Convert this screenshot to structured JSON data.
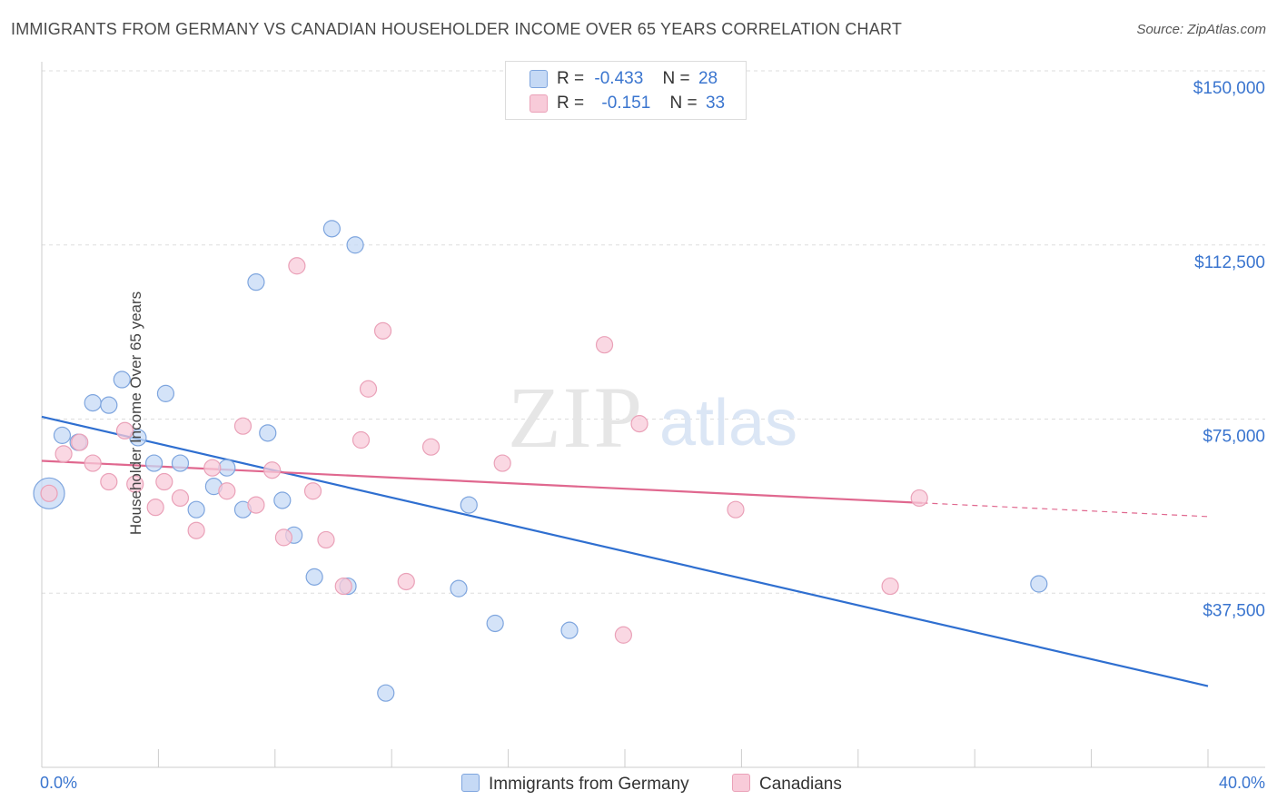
{
  "title": "IMMIGRANTS FROM GERMANY VS CANADIAN HOUSEHOLDER INCOME OVER 65 YEARS CORRELATION CHART",
  "source": "Source: ZipAtlas.com",
  "watermark": {
    "zip": "ZIP",
    "atlas": "atlas"
  },
  "legend": {
    "series1": {
      "r_label": "R =",
      "r_value": "-0.433",
      "n_label": "N =",
      "n_value": "28"
    },
    "series2": {
      "r_label": "R =",
      "r_value": "-0.151",
      "n_label": "N =",
      "n_value": "33"
    }
  },
  "colors": {
    "blue_fill": "#c5d9f5",
    "blue_stroke": "#7ea5de",
    "blue_line": "#2f6fd0",
    "pink_fill": "#f8cbd9",
    "pink_stroke": "#eaa1b8",
    "pink_line": "#e0688f",
    "grid": "#dddddd",
    "axis_text": "#3a75cf"
  },
  "chart_data": {
    "type": "scatter",
    "title": "IMMIGRANTS FROM GERMANY VS CANADIAN HOUSEHOLDER INCOME OVER 65 YEARS CORRELATION CHART",
    "xlabel": "",
    "ylabel": "Householder Income Over 65 years",
    "xlim": [
      0,
      40
    ],
    "ylim": [
      0,
      155000
    ],
    "x_tick_labels": [
      "0.0%",
      "40.0%"
    ],
    "y_ticks": [
      37500,
      75000,
      112500,
      150000
    ],
    "y_tick_labels": [
      "$37,500",
      "$75,000",
      "$112,500",
      "$150,000"
    ],
    "series": [
      {
        "name": "Immigrants from Germany",
        "color": "blue",
        "points": [
          [
            0.25,
            59000,
            2
          ],
          [
            0.7,
            71500,
            1
          ],
          [
            1.25,
            70000,
            1
          ],
          [
            1.75,
            78500,
            1
          ],
          [
            2.3,
            78000,
            1
          ],
          [
            2.75,
            83500,
            1
          ],
          [
            3.3,
            71000,
            1
          ],
          [
            3.85,
            65500,
            1
          ],
          [
            4.25,
            80500,
            1
          ],
          [
            4.75,
            65500,
            1
          ],
          [
            5.3,
            55500,
            1
          ],
          [
            5.9,
            60500,
            1
          ],
          [
            6.35,
            64500,
            1
          ],
          [
            6.9,
            55500,
            1
          ],
          [
            7.35,
            104500,
            1
          ],
          [
            7.75,
            72000,
            1
          ],
          [
            8.25,
            57500,
            1
          ],
          [
            8.65,
            50000,
            1
          ],
          [
            9.35,
            41000,
            1
          ],
          [
            9.95,
            116000,
            1
          ],
          [
            10.5,
            39000,
            1
          ],
          [
            10.75,
            112500,
            1
          ],
          [
            11.8,
            16000,
            1
          ],
          [
            14.3,
            38500,
            1
          ],
          [
            14.65,
            56500,
            1
          ],
          [
            15.55,
            31000,
            1
          ],
          [
            18.1,
            29500,
            1
          ],
          [
            34.2,
            39500,
            1
          ]
        ],
        "trend": {
          "x": [
            0,
            40
          ],
          "y": [
            75500,
            17500
          ],
          "dashed_from": null
        }
      },
      {
        "name": "Canadians",
        "color": "pink",
        "points": [
          [
            0.25,
            59000,
            1
          ],
          [
            0.75,
            67500,
            1
          ],
          [
            1.3,
            70000,
            1
          ],
          [
            1.75,
            65500,
            1
          ],
          [
            2.3,
            61500,
            1
          ],
          [
            2.85,
            72500,
            1
          ],
          [
            3.2,
            61000,
            1
          ],
          [
            3.9,
            56000,
            1
          ],
          [
            4.2,
            61500,
            1
          ],
          [
            4.75,
            58000,
            1
          ],
          [
            5.3,
            51000,
            1
          ],
          [
            5.85,
            64500,
            1
          ],
          [
            6.35,
            59500,
            1
          ],
          [
            6.9,
            73500,
            1
          ],
          [
            7.35,
            56500,
            1
          ],
          [
            7.9,
            64000,
            1
          ],
          [
            8.3,
            49500,
            1
          ],
          [
            8.75,
            108000,
            1
          ],
          [
            9.3,
            59500,
            1
          ],
          [
            9.75,
            49000,
            1
          ],
          [
            10.35,
            39000,
            1
          ],
          [
            10.95,
            70500,
            1
          ],
          [
            11.2,
            81500,
            1
          ],
          [
            11.7,
            94000,
            1
          ],
          [
            12.5,
            40000,
            1
          ],
          [
            13.35,
            69000,
            1
          ],
          [
            15.8,
            65500,
            1
          ],
          [
            19.3,
            91000,
            1
          ],
          [
            20.5,
            74000,
            1
          ],
          [
            23.8,
            55500,
            1
          ],
          [
            29.1,
            39000,
            1
          ],
          [
            30.1,
            58000,
            1
          ],
          [
            19.95,
            28500,
            1
          ]
        ],
        "trend": {
          "x": [
            0,
            40
          ],
          "y": [
            66000,
            54000
          ],
          "dashed_from": 30.2
        }
      }
    ]
  }
}
